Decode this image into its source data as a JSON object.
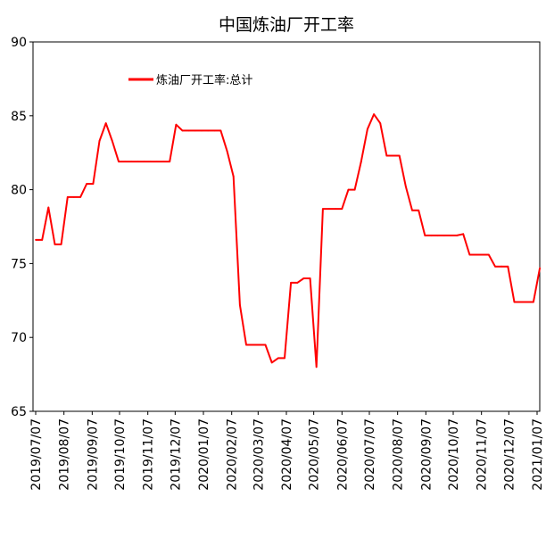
{
  "chart_data": {
    "type": "line",
    "title": "中国炼油厂开工率",
    "xlabel": "",
    "ylabel": "",
    "ylim": [
      65,
      90
    ],
    "yticks": [
      65,
      70,
      75,
      80,
      85,
      90
    ],
    "grid": false,
    "legend_position": "top-left",
    "line_color": "#ff0000",
    "x_tick_labels": [
      "2019/07/07",
      "2019/08/07",
      "2019/09/07",
      "2019/10/07",
      "2019/11/07",
      "2019/12/07",
      "2020/01/07",
      "2020/02/07",
      "2020/03/07",
      "2020/04/07",
      "2020/05/07",
      "2020/06/07",
      "2020/07/07",
      "2020/08/07",
      "2020/09/07",
      "2020/10/07",
      "2020/11/07",
      "2020/12/07",
      "2021/01/07"
    ],
    "series": [
      {
        "name": "炼油厂开工率:总计",
        "points": [
          [
            "2019-07-07",
            76.6
          ],
          [
            "2019-07-10",
            76.6
          ],
          [
            "2019-07-14",
            76.6
          ],
          [
            "2019-07-21",
            78.8
          ],
          [
            "2019-07-28",
            76.3
          ],
          [
            "2019-08-04",
            76.3
          ],
          [
            "2019-08-11",
            79.5
          ],
          [
            "2019-08-18",
            79.5
          ],
          [
            "2019-08-25",
            79.5
          ],
          [
            "2019-09-01",
            80.4
          ],
          [
            "2019-09-08",
            80.4
          ],
          [
            "2019-09-15",
            83.3
          ],
          [
            "2019-09-22",
            84.5
          ],
          [
            "2019-09-29",
            83.3
          ],
          [
            "2019-10-06",
            81.9
          ],
          [
            "2019-10-13",
            81.9
          ],
          [
            "2019-10-20",
            81.9
          ],
          [
            "2019-10-27",
            81.9
          ],
          [
            "2019-11-03",
            81.9
          ],
          [
            "2019-11-10",
            81.9
          ],
          [
            "2019-11-17",
            81.9
          ],
          [
            "2019-11-24",
            81.9
          ],
          [
            "2019-12-01",
            81.9
          ],
          [
            "2019-12-08",
            84.4
          ],
          [
            "2019-12-15",
            84.0
          ],
          [
            "2019-12-22",
            84.0
          ],
          [
            "2019-12-29",
            84.0
          ],
          [
            "2020-01-05",
            84.0
          ],
          [
            "2020-01-12",
            84.0
          ],
          [
            "2020-01-19",
            84.0
          ],
          [
            "2020-01-26",
            84.0
          ],
          [
            "2020-02-02",
            82.6
          ],
          [
            "2020-02-09",
            80.9
          ],
          [
            "2020-02-16",
            72.2
          ],
          [
            "2020-02-23",
            69.5
          ],
          [
            "2020-03-01",
            69.5
          ],
          [
            "2020-03-08",
            69.5
          ],
          [
            "2020-03-15",
            69.5
          ],
          [
            "2020-03-22",
            68.3
          ],
          [
            "2020-03-29",
            68.6
          ],
          [
            "2020-04-05",
            68.6
          ],
          [
            "2020-04-12",
            73.7
          ],
          [
            "2020-04-19",
            73.7
          ],
          [
            "2020-04-26",
            74.0
          ],
          [
            "2020-05-03",
            74.0
          ],
          [
            "2020-05-10",
            68.0
          ],
          [
            "2020-05-17",
            78.7
          ],
          [
            "2020-05-24",
            78.7
          ],
          [
            "2020-05-31",
            78.7
          ],
          [
            "2020-06-07",
            78.7
          ],
          [
            "2020-06-14",
            80.0
          ],
          [
            "2020-06-21",
            80.0
          ],
          [
            "2020-06-28",
            81.9
          ],
          [
            "2020-07-05",
            84.1
          ],
          [
            "2020-07-12",
            85.1
          ],
          [
            "2020-07-19",
            84.5
          ],
          [
            "2020-07-26",
            82.3
          ],
          [
            "2020-08-02",
            82.3
          ],
          [
            "2020-08-09",
            82.3
          ],
          [
            "2020-08-16",
            80.2
          ],
          [
            "2020-08-23",
            78.6
          ],
          [
            "2020-08-30",
            78.6
          ],
          [
            "2020-09-06",
            76.9
          ],
          [
            "2020-09-13",
            76.9
          ],
          [
            "2020-09-20",
            76.9
          ],
          [
            "2020-09-27",
            76.9
          ],
          [
            "2020-10-04",
            76.9
          ],
          [
            "2020-10-11",
            76.9
          ],
          [
            "2020-10-18",
            77.0
          ],
          [
            "2020-10-25",
            75.6
          ],
          [
            "2020-11-01",
            75.6
          ],
          [
            "2020-11-08",
            75.6
          ],
          [
            "2020-11-15",
            75.6
          ],
          [
            "2020-11-22",
            74.8
          ],
          [
            "2020-11-29",
            74.8
          ],
          [
            "2020-12-06",
            74.8
          ],
          [
            "2020-12-13",
            72.4
          ],
          [
            "2020-12-20",
            72.4
          ],
          [
            "2020-12-27",
            72.4
          ],
          [
            "2021-01-03",
            72.4
          ],
          [
            "2021-01-10",
            74.7
          ]
        ]
      }
    ]
  }
}
